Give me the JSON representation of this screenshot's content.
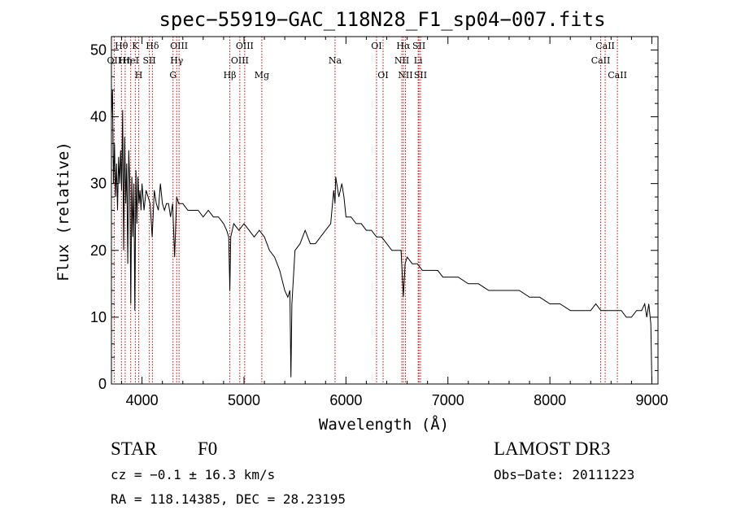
{
  "chart_data": {
    "type": "line",
    "title": "spec−55919−GAC_118N28_F1_sp04−007.fits",
    "xlabel": "Wavelength (Å)",
    "ylabel": "Flux (relative)",
    "xlim": [
      3700,
      9060
    ],
    "ylim": [
      0,
      52
    ],
    "x_ticks": [
      4000,
      5000,
      6000,
      7000,
      8000,
      9000
    ],
    "y_ticks": [
      0,
      10,
      20,
      30,
      40,
      50
    ],
    "grid": false,
    "series": [
      {
        "x": [
          3700,
          3710,
          3720,
          3730,
          3740,
          3750,
          3760,
          3770,
          3780,
          3790,
          3800,
          3810,
          3820,
          3830,
          3840,
          3850,
          3860,
          3870,
          3880,
          3890,
          3900,
          3910,
          3920,
          3930,
          3940,
          3950,
          3960,
          3970,
          3980,
          3990,
          4000,
          4020,
          4040,
          4060,
          4080,
          4100,
          4120,
          4140,
          4160,
          4180,
          4200,
          4220,
          4240,
          4260,
          4280,
          4300,
          4320,
          4340,
          4360,
          4380,
          4400,
          4450,
          4500,
          4550,
          4600,
          4650,
          4700,
          4750,
          4800,
          4830,
          4850,
          4861,
          4870,
          4900,
          4950,
          5000,
          5050,
          5100,
          5150,
          5200,
          5250,
          5300,
          5350,
          5400,
          5430,
          5450,
          5460,
          5470,
          5500,
          5550,
          5600,
          5650,
          5700,
          5750,
          5800,
          5850,
          5880,
          5893,
          5900,
          5930,
          5960,
          5980,
          6000,
          6050,
          6100,
          6150,
          6200,
          6250,
          6300,
          6350,
          6400,
          6450,
          6500,
          6540,
          6563,
          6580,
          6600,
          6650,
          6700,
          6750,
          6800,
          6850,
          6900,
          6950,
          7000,
          7100,
          7200,
          7300,
          7400,
          7500,
          7600,
          7700,
          7800,
          7900,
          8000,
          8100,
          8200,
          8300,
          8400,
          8450,
          8500,
          8550,
          8600,
          8650,
          8700,
          8750,
          8800,
          8850,
          8900,
          8930,
          8950,
          8970,
          8990,
          9000
        ],
        "y": [
          40,
          44,
          30,
          36,
          28,
          33,
          26,
          34,
          30,
          35,
          29,
          41,
          20,
          37,
          27,
          33,
          18,
          35,
          30,
          12,
          31,
          22,
          30,
          11,
          32,
          24,
          31,
          27,
          29,
          26,
          30,
          26,
          29,
          28,
          27,
          22,
          29,
          27,
          26,
          30,
          27,
          26,
          27,
          27,
          25,
          27,
          19,
          28,
          27,
          27,
          27,
          26,
          26,
          26,
          25,
          26,
          25,
          25,
          24,
          23,
          22,
          14,
          22,
          24,
          23,
          24,
          23,
          22,
          23,
          22,
          20,
          19,
          17,
          14,
          13,
          14,
          1,
          12,
          20,
          21,
          23,
          21,
          21,
          22,
          23,
          24,
          29,
          27,
          31,
          28,
          30,
          28,
          25,
          25,
          24,
          24,
          23,
          23,
          22,
          22,
          21,
          20,
          20,
          20,
          13,
          18,
          19,
          18,
          18,
          17,
          17,
          17,
          17,
          16,
          16,
          16,
          15,
          15,
          14,
          14,
          14,
          14,
          13,
          13,
          12,
          12,
          11,
          11,
          11,
          12,
          11,
          11,
          11,
          11,
          11,
          10,
          10,
          11,
          11,
          12,
          10,
          12,
          9,
          0
        ]
      }
    ],
    "lines": [
      {
        "wl": 3727,
        "label": "OII",
        "row": 2
      },
      {
        "wl": 3798,
        "label": "Hθ",
        "row": 1
      },
      {
        "wl": 3835,
        "label": "Hη",
        "row": 2
      },
      {
        "wl": 3889,
        "label": "HeI",
        "row": 2
      },
      {
        "wl": 3934,
        "label": "K",
        "row": 1
      },
      {
        "wl": 3968,
        "label": "H",
        "row": 3
      },
      {
        "wl": 4072,
        "label": "SII",
        "row": 2
      },
      {
        "wl": 4102,
        "label": "Hδ",
        "row": 1
      },
      {
        "wl": 4304,
        "label": "G",
        "row": 3
      },
      {
        "wl": 4340,
        "label": "Hγ",
        "row": 2
      },
      {
        "wl": 4363,
        "label": "OIII",
        "row": 1
      },
      {
        "wl": 4861,
        "label": "Hβ",
        "row": 3
      },
      {
        "wl": 4959,
        "label": "OIII",
        "row": 2
      },
      {
        "wl": 5007,
        "label": "OIII",
        "row": 1
      },
      {
        "wl": 5175,
        "label": "Mg",
        "row": 3
      },
      {
        "wl": 5893,
        "label": "Na",
        "row": 2
      },
      {
        "wl": 6300,
        "label": "OI",
        "row": 1
      },
      {
        "wl": 6364,
        "label": "OI",
        "row": 3
      },
      {
        "wl": 6548,
        "label": "NII",
        "row": 2
      },
      {
        "wl": 6563,
        "label": "Hα",
        "row": 1
      },
      {
        "wl": 6583,
        "label": "NII",
        "row": 3
      },
      {
        "wl": 6708,
        "label": "Li",
        "row": 2
      },
      {
        "wl": 6716,
        "label": "SII",
        "row": 1
      },
      {
        "wl": 6731,
        "label": "SII",
        "row": 3
      },
      {
        "wl": 8498,
        "label": "CaII",
        "row": 2
      },
      {
        "wl": 8542,
        "label": "CaII",
        "row": 1
      },
      {
        "wl": 8662,
        "label": "CaII",
        "row": 3
      }
    ]
  },
  "info": {
    "object_class": "STAR",
    "subclass": "F0",
    "survey": "LAMOST DR3",
    "cz": "cz = −0.1 ± 16.3 km/s",
    "obs_date": "Obs−Date: 20111223",
    "coords": "RA = 118.14385, DEC =  28.23195"
  },
  "colors": {
    "marker_line": "#cc0000",
    "spectrum": "#000000"
  }
}
